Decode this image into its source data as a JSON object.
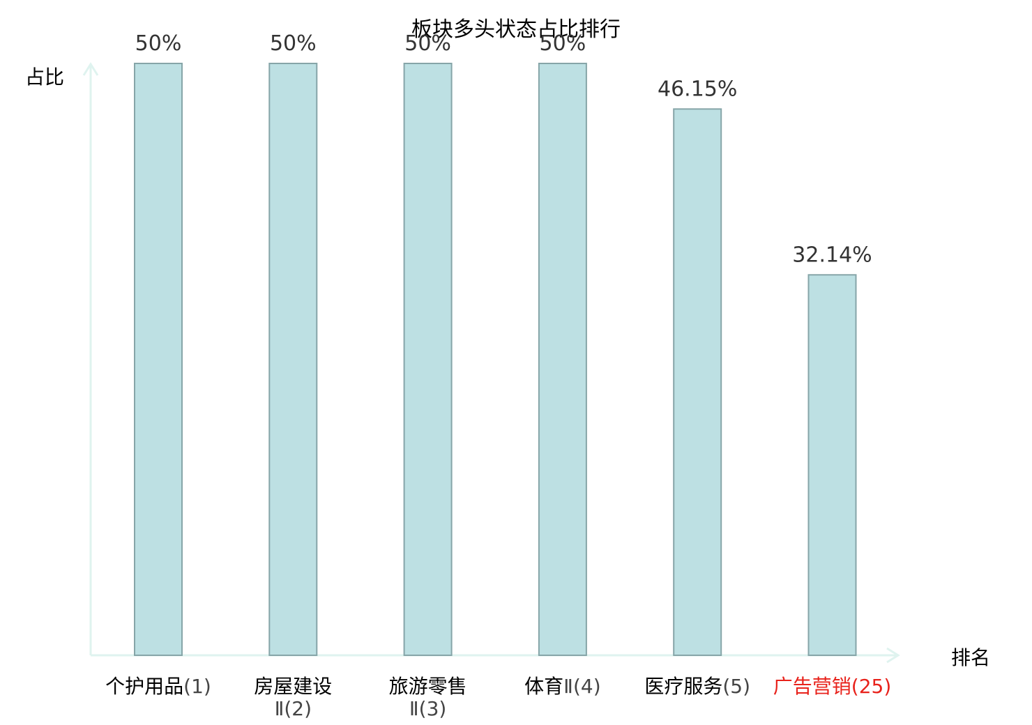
{
  "chart_data": {
    "type": "bar",
    "title": "板块多头状态占比排行",
    "xlabel": "排名",
    "ylabel": "占比",
    "ylim": [
      0,
      50
    ],
    "grid": false,
    "legend": "none",
    "categories": [
      {
        "name": "个护用品",
        "rank": "(1)",
        "highlight": false
      },
      {
        "name": "房屋建设",
        "rank": "Ⅱ(2)",
        "highlight": false
      },
      {
        "name": "旅游零售",
        "rank": "Ⅱ(3)",
        "highlight": false
      },
      {
        "name": "体育",
        "rank": "Ⅱ(4)",
        "highlight": false
      },
      {
        "name": "医疗服务",
        "rank": "(5)",
        "highlight": false
      },
      {
        "name": "广告营销",
        "rank": "(25)",
        "highlight": true
      }
    ],
    "values": [
      50,
      50,
      50,
      50,
      46.15,
      32.14
    ],
    "value_labels": [
      "50%",
      "50%",
      "50%",
      "50%",
      "46.15%",
      "32.14%"
    ],
    "colors": {
      "bar_fill": "#bde0e3",
      "bar_stroke": "#86a5a8",
      "axis": "#dff3ef",
      "highlight": "#e8221b",
      "rank_text": "#444444",
      "name_text": "#000000"
    }
  }
}
